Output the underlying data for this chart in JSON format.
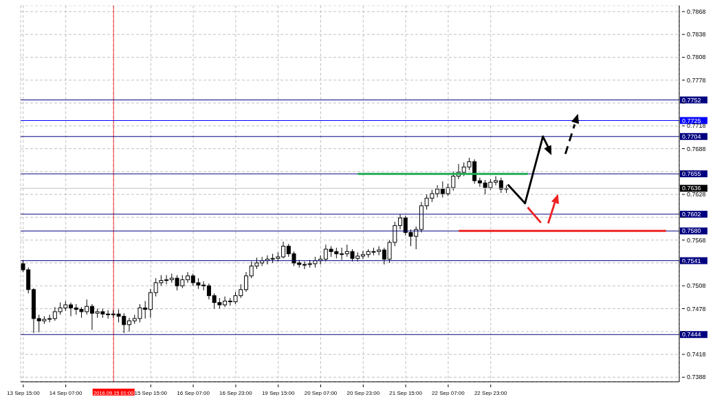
{
  "chart_data": {
    "type": "candlestick",
    "categories": [
      "13 Sep 15:00",
      null,
      null,
      null,
      null,
      null,
      null,
      null,
      "14 Sep 07:00",
      null,
      null,
      null,
      null,
      null,
      null,
      null,
      null,
      "2016.09.15 01:00",
      null,
      null,
      null,
      null,
      null,
      null,
      "15 Sep 15:00",
      null,
      null,
      null,
      null,
      null,
      null,
      null,
      "16 Sep 07:00",
      null,
      null,
      null,
      null,
      null,
      null,
      null,
      "16 Sep 23:00",
      null,
      null,
      null,
      null,
      null,
      null,
      null,
      "19 Sep 15:00",
      null,
      null,
      null,
      null,
      null,
      null,
      null,
      "20 Sep 07:00",
      null,
      null,
      null,
      null,
      null,
      null,
      null,
      "20 Sep 23:00",
      null,
      null,
      null,
      null,
      null,
      null,
      null,
      "21 Sep 15:00",
      null,
      null,
      null,
      null,
      null,
      null,
      null,
      "22 Sep 07:00",
      null,
      null,
      null,
      null,
      null,
      null,
      null,
      "22 Sep 23:00",
      null,
      null,
      null,
      null,
      null,
      null,
      null,
      null,
      null,
      null,
      null,
      null,
      null,
      null,
      null,
      null,
      null,
      null,
      null,
      null,
      null,
      null,
      null,
      null,
      null,
      null,
      null,
      null,
      null,
      null,
      null,
      null,
      null,
      null,
      null
    ],
    "color": "#000000",
    "ohlc": [
      [
        0.7537,
        0.7542,
        0.7526,
        0.7529
      ],
      [
        0.7529,
        0.7532,
        0.7498,
        0.7503
      ],
      [
        0.7503,
        0.7505,
        0.7446,
        0.7465
      ],
      [
        0.7465,
        0.747,
        0.7447,
        0.7462
      ],
      [
        0.7462,
        0.7468,
        0.7458,
        0.7464
      ],
      [
        0.7464,
        0.747,
        0.746,
        0.7465
      ],
      [
        0.7465,
        0.748,
        0.7462,
        0.7474
      ],
      [
        0.7474,
        0.7486,
        0.747,
        0.7479
      ],
      [
        0.7479,
        0.7488,
        0.7475,
        0.7483
      ],
      [
        0.7483,
        0.7486,
        0.7468,
        0.7479
      ],
      [
        0.7479,
        0.7484,
        0.747,
        0.7477
      ],
      [
        0.7477,
        0.748,
        0.7466,
        0.7474
      ],
      [
        0.7474,
        0.749,
        0.747,
        0.7481
      ],
      [
        0.7481,
        0.7484,
        0.745,
        0.7472
      ],
      [
        0.7472,
        0.7478,
        0.7466,
        0.7474
      ],
      [
        0.7474,
        0.7478,
        0.7466,
        0.7471
      ],
      [
        0.7471,
        0.7476,
        0.7465,
        0.747
      ],
      [
        0.747,
        0.7476,
        0.7466,
        0.7471
      ],
      [
        0.7471,
        0.7477,
        0.746,
        0.7468
      ],
      [
        0.7468,
        0.7472,
        0.7446,
        0.7457
      ],
      [
        0.7457,
        0.7466,
        0.7448,
        0.7462
      ],
      [
        0.7462,
        0.747,
        0.7458,
        0.7465
      ],
      [
        0.7465,
        0.7484,
        0.746,
        0.7479
      ],
      [
        0.7479,
        0.7488,
        0.7465,
        0.7477
      ],
      [
        0.7477,
        0.7504,
        0.7466,
        0.7499
      ],
      [
        0.7499,
        0.7518,
        0.7494,
        0.7512
      ],
      [
        0.7512,
        0.7522,
        0.7508,
        0.7515
      ],
      [
        0.7515,
        0.7522,
        0.751,
        0.7516
      ],
      [
        0.7516,
        0.7524,
        0.7512,
        0.7518
      ],
      [
        0.7518,
        0.7522,
        0.7502,
        0.7508
      ],
      [
        0.7508,
        0.7522,
        0.7505,
        0.7516
      ],
      [
        0.7516,
        0.7526,
        0.7512,
        0.7521
      ],
      [
        0.7521,
        0.7524,
        0.7508,
        0.7512
      ],
      [
        0.7512,
        0.7518,
        0.7504,
        0.7509
      ],
      [
        0.7509,
        0.7514,
        0.7502,
        0.7508
      ],
      [
        0.7508,
        0.7511,
        0.749,
        0.7495
      ],
      [
        0.7495,
        0.7498,
        0.7478,
        0.7486
      ],
      [
        0.7486,
        0.7492,
        0.7478,
        0.7483
      ],
      [
        0.7483,
        0.7494,
        0.748,
        0.7488
      ],
      [
        0.7488,
        0.7492,
        0.7482,
        0.7487
      ],
      [
        0.7487,
        0.75,
        0.7484,
        0.7495
      ],
      [
        0.7495,
        0.751,
        0.7492,
        0.7503
      ],
      [
        0.7503,
        0.7526,
        0.75,
        0.7521
      ],
      [
        0.7521,
        0.754,
        0.7518,
        0.7534
      ],
      [
        0.7534,
        0.7545,
        0.753,
        0.7538
      ],
      [
        0.7538,
        0.7546,
        0.7534,
        0.7541
      ],
      [
        0.7541,
        0.7548,
        0.7536,
        0.7543
      ],
      [
        0.7543,
        0.755,
        0.7538,
        0.7544
      ],
      [
        0.7544,
        0.7552,
        0.754,
        0.7546
      ],
      [
        0.7546,
        0.7566,
        0.7544,
        0.756
      ],
      [
        0.756,
        0.7563,
        0.7546,
        0.755
      ],
      [
        0.755,
        0.7553,
        0.7534,
        0.7538
      ],
      [
        0.7538,
        0.7542,
        0.7532,
        0.7536
      ],
      [
        0.7536,
        0.754,
        0.753,
        0.7536
      ],
      [
        0.7536,
        0.7542,
        0.7532,
        0.7537
      ],
      [
        0.7537,
        0.7546,
        0.7532,
        0.7541
      ],
      [
        0.7541,
        0.7548,
        0.7536,
        0.7543
      ],
      [
        0.7543,
        0.7562,
        0.754,
        0.7556
      ],
      [
        0.7556,
        0.756,
        0.7546,
        0.7553
      ],
      [
        0.7553,
        0.7558,
        0.7544,
        0.755
      ],
      [
        0.755,
        0.7558,
        0.7542,
        0.755
      ],
      [
        0.755,
        0.7562,
        0.7546,
        0.7553
      ],
      [
        0.7553,
        0.7556,
        0.754,
        0.7544
      ],
      [
        0.7544,
        0.7552,
        0.754,
        0.7547
      ],
      [
        0.7547,
        0.7554,
        0.7543,
        0.7549
      ],
      [
        0.7549,
        0.7556,
        0.7545,
        0.7553
      ],
      [
        0.7553,
        0.7558,
        0.7548,
        0.7553
      ],
      [
        0.7553,
        0.756,
        0.7548,
        0.7555
      ],
      [
        0.7555,
        0.7558,
        0.7536,
        0.7543
      ],
      [
        0.7543,
        0.7568,
        0.7538,
        0.7565
      ],
      [
        0.7565,
        0.7592,
        0.756,
        0.7587
      ],
      [
        0.7587,
        0.7602,
        0.7582,
        0.7597
      ],
      [
        0.7597,
        0.76,
        0.7574,
        0.7578
      ],
      [
        0.7578,
        0.7582,
        0.756,
        0.7573
      ],
      [
        0.7573,
        0.7586,
        0.7556,
        0.7582
      ],
      [
        0.7582,
        0.7618,
        0.7578,
        0.7613
      ],
      [
        0.7613,
        0.7628,
        0.7608,
        0.7623
      ],
      [
        0.7623,
        0.7634,
        0.7618,
        0.7629
      ],
      [
        0.7629,
        0.764,
        0.7624,
        0.7635
      ],
      [
        0.7635,
        0.7645,
        0.7624,
        0.7629
      ],
      [
        0.7629,
        0.7642,
        0.7626,
        0.7637
      ],
      [
        0.7637,
        0.7658,
        0.7633,
        0.7652
      ],
      [
        0.7652,
        0.7668,
        0.7648,
        0.7657
      ],
      [
        0.7657,
        0.767,
        0.7652,
        0.7664
      ],
      [
        0.7664,
        0.7676,
        0.766,
        0.7671
      ],
      [
        0.7671,
        0.7674,
        0.7642,
        0.7646
      ],
      [
        0.7646,
        0.765,
        0.7638,
        0.7643
      ],
      [
        0.7643,
        0.7647,
        0.7628,
        0.7637
      ],
      [
        0.7637,
        0.7648,
        0.7634,
        0.7644
      ],
      [
        0.7644,
        0.7652,
        0.764,
        0.7646
      ],
      [
        0.7646,
        0.765,
        0.763,
        0.7635
      ],
      [
        0.7635,
        0.764,
        0.763,
        0.7636
      ],
      null,
      null,
      null,
      null,
      null,
      null,
      null,
      null,
      null,
      null,
      null,
      null,
      null,
      null,
      null,
      null,
      null,
      null,
      null,
      null,
      null,
      null,
      null,
      null,
      null,
      null,
      null,
      null,
      null,
      null,
      null,
      null
    ],
    "series": [
      {
        "type": "line",
        "color": "#22aa55",
        "values": [
          null,
          null,
          null,
          null,
          null,
          null,
          null,
          null,
          null,
          null,
          null,
          null,
          null,
          null,
          null,
          null,
          null,
          null,
          null,
          null,
          null,
          null,
          null,
          null,
          null,
          null,
          null,
          null,
          null,
          null,
          null,
          null,
          null,
          null,
          null,
          null,
          null,
          null,
          null,
          null,
          null,
          null,
          null,
          null,
          null,
          null,
          null,
          null,
          null,
          null,
          null,
          null,
          null,
          null,
          null,
          null,
          null,
          null,
          null,
          null,
          null,
          null,
          null,
          0.7655,
          0.7655,
          0.7655,
          0.7655,
          0.7655,
          0.7655,
          0.7655,
          0.7655,
          0.7655,
          0.7655,
          0.7655,
          0.7655,
          0.7655,
          0.7655,
          0.7655,
          0.7655,
          0.7655,
          0.7655,
          0.7655,
          0.7655,
          0.7655,
          0.7655,
          0.7655,
          0.7655,
          0.7655,
          0.7655,
          0.7655,
          0.7655,
          0.7655,
          0.7655,
          0.7655,
          0.7655,
          0.7655,
          null,
          null,
          null,
          null,
          null,
          null,
          null,
          null,
          null,
          null,
          null,
          null,
          null,
          null,
          null,
          null,
          null,
          null,
          null,
          null,
          null,
          null,
          null,
          null,
          null,
          null,
          null,
          null
        ]
      },
      {
        "type": "line",
        "color": "#ee2222",
        "values": [
          null,
          null,
          null,
          null,
          null,
          null,
          null,
          null,
          null,
          null,
          null,
          null,
          null,
          null,
          null,
          null,
          null,
          null,
          null,
          null,
          null,
          null,
          null,
          null,
          null,
          null,
          null,
          null,
          null,
          null,
          null,
          null,
          null,
          null,
          null,
          null,
          null,
          null,
          null,
          null,
          null,
          null,
          null,
          null,
          null,
          null,
          null,
          null,
          null,
          null,
          null,
          null,
          null,
          null,
          null,
          null,
          null,
          null,
          null,
          null,
          null,
          null,
          null,
          null,
          null,
          null,
          null,
          null,
          null,
          null,
          null,
          null,
          null,
          null,
          null,
          null,
          null,
          null,
          null,
          null,
          null,
          null,
          0.758,
          0.758,
          0.758,
          0.758,
          0.758,
          0.758,
          0.758,
          0.758,
          0.758,
          0.758,
          0.758,
          0.758,
          0.758,
          0.758,
          0.758,
          0.758,
          0.758,
          0.758,
          0.758,
          0.758,
          0.758,
          0.758,
          0.758,
          0.758,
          0.758,
          0.758,
          0.758,
          0.758,
          0.758,
          0.758,
          0.758,
          0.758,
          0.758,
          0.758,
          0.758,
          0.758,
          0.758,
          0.758,
          0.758,
          0.758,
          null,
          null
        ]
      }
    ],
    "ylim": [
      0.7382,
      0.7876
    ],
    "yticks": [
      0.7388,
      0.7418,
      {
        "value": 0.7448,
        "label": null
      },
      0.7478,
      0.7508,
      {
        "value": 0.7538,
        "label": null
      },
      0.7568,
      {
        "value": 0.7598,
        "label": null
      },
      0.7628,
      {
        "value": 0.7658,
        "label": null
      },
      0.7688,
      0.7718,
      {
        "value": 0.7748,
        "label": null
      },
      0.7778,
      0.7808,
      0.7838,
      0.7868
    ],
    "grid": true,
    "ref_lines": [
      {
        "axis": "x",
        "value": "2016.09.15 01:00",
        "color": "#ff0000"
      },
      {
        "axis": "y",
        "value": 0.7752,
        "label": "0.7752",
        "color": "#000080"
      },
      {
        "axis": "y",
        "value": 0.7725,
        "label": "0.7725",
        "color": "#0000ff"
      },
      {
        "axis": "y",
        "value": 0.7704,
        "label": "0.7704",
        "color": "#000080"
      },
      {
        "axis": "y",
        "value": 0.7655,
        "label": "0.7655",
        "color": "#000080"
      },
      {
        "axis": "y",
        "value": 0.7636,
        "label": "0.7636",
        "color": "#c0c0c0"
      },
      {
        "axis": "y",
        "value": 0.7602,
        "label": "0.7602",
        "color": "#000080"
      },
      {
        "axis": "y",
        "value": 0.758,
        "label": "0.7580",
        "color": "#000080"
      },
      {
        "axis": "y",
        "value": 0.7541,
        "label": "0.7541",
        "color": "#000080"
      },
      {
        "axis": "y",
        "value": 0.7444,
        "label": "0.7444",
        "color": "#000080"
      }
    ]
  }
}
